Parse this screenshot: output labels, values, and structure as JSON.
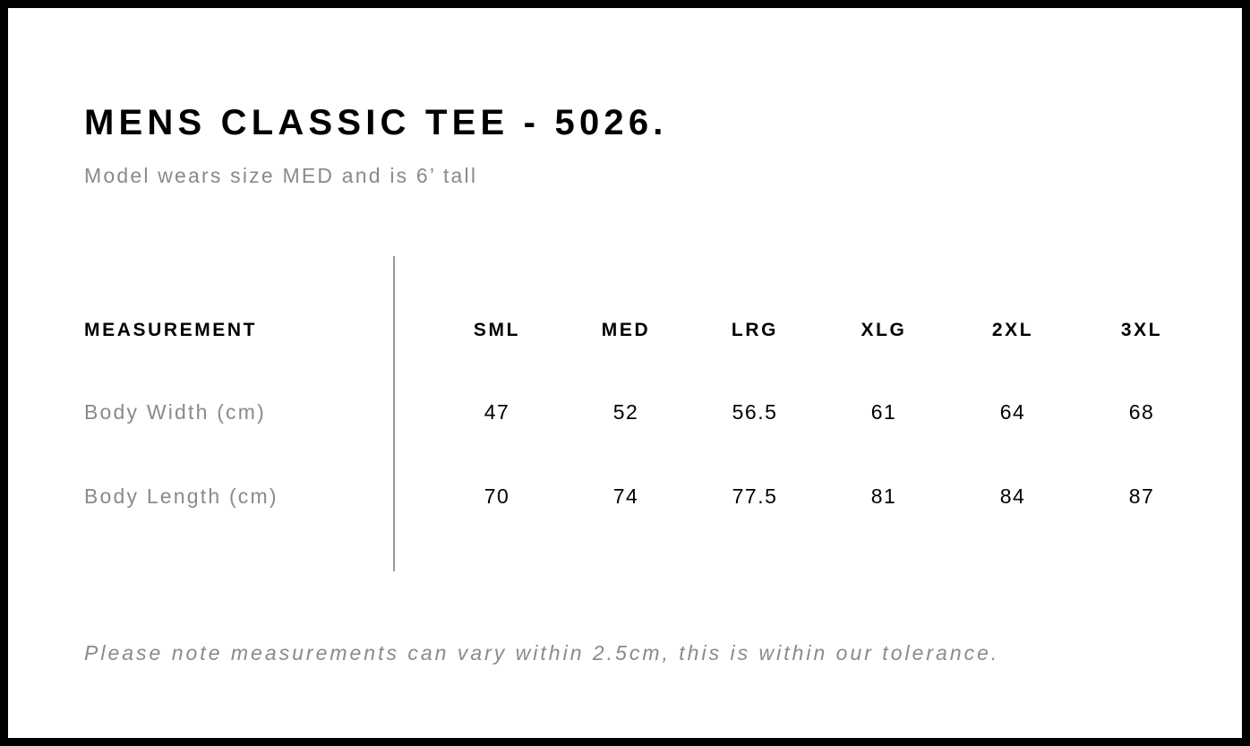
{
  "title": "MENS CLASSIC TEE - 5026.",
  "subtitle": "Model wears size MED and is 6’ tall",
  "table": {
    "header_label": "MEASUREMENT",
    "sizes": [
      "SML",
      "MED",
      "LRG",
      "XLG",
      "2XL",
      "3XL"
    ],
    "rows": [
      {
        "label": "Body Width (cm)",
        "values": [
          "47",
          "52",
          "56.5",
          "61",
          "64",
          "68"
        ]
      },
      {
        "label": "Body Length (cm)",
        "values": [
          "70",
          "74",
          "77.5",
          "81",
          "84",
          "87"
        ]
      }
    ]
  },
  "note": "Please note measurements can vary within 2.5cm, this is within our tolerance."
}
